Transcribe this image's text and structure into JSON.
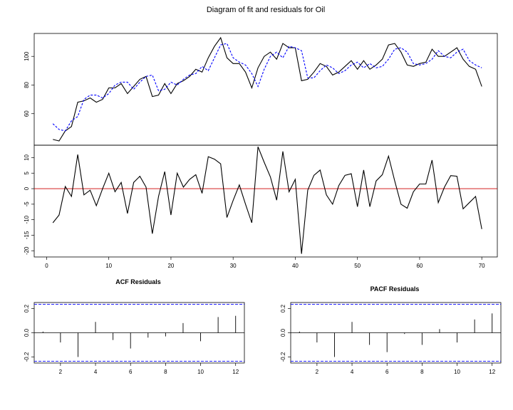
{
  "chart_data": [
    {
      "type": "line",
      "title": "Diagram of fit and residuals for Oil",
      "xlabel": "",
      "ylabel": "",
      "ylim": [
        38,
        116
      ],
      "yticks": [
        60,
        80,
        100
      ],
      "grid": false,
      "series": [
        {
          "color": "#000000",
          "style": "solid",
          "values": [
            42,
            41,
            48,
            51,
            68,
            69,
            71,
            68,
            70,
            78,
            78,
            81,
            74,
            79,
            84,
            86,
            72,
            73,
            81,
            74,
            81,
            83,
            86,
            91,
            89,
            99,
            107,
            113,
            99,
            95,
            95,
            89,
            78,
            92,
            100,
            103,
            98,
            109,
            106,
            106,
            83,
            84,
            89,
            95,
            93,
            87,
            89,
            93,
            97,
            91,
            97,
            91,
            94,
            98,
            108,
            109,
            103,
            94,
            93,
            95,
            96,
            105,
            100,
            100,
            103,
            106,
            98,
            93,
            91,
            79
          ],
          "x_start": 1
        },
        {
          "color": "#0000ff",
          "style": "dashed",
          "values": [
            53,
            49,
            48,
            55,
            58,
            70,
            73,
            73,
            71,
            74,
            80,
            82,
            82,
            77,
            82,
            86,
            87,
            76,
            77,
            82,
            80,
            84,
            87,
            88,
            93,
            90,
            99,
            108,
            109,
            99,
            96,
            94,
            88,
            79,
            91,
            100,
            103,
            99,
            107,
            106,
            104,
            85,
            85,
            90,
            94,
            92,
            88,
            90,
            94,
            96,
            92,
            95,
            92,
            93,
            98,
            105,
            106,
            103,
            95,
            94,
            95,
            98,
            104,
            100,
            99,
            103,
            105,
            97,
            94,
            92
          ],
          "x_start": 1
        }
      ]
    },
    {
      "type": "line",
      "xlabel": "",
      "ylabel": "",
      "ylim": [
        -22,
        14
      ],
      "yticks": [
        10,
        5,
        0,
        -5,
        -10,
        -15,
        -20
      ],
      "xlim": [
        -2,
        72.5
      ],
      "xticks": [
        0,
        10,
        20,
        30,
        40,
        50,
        60,
        70
      ],
      "reference_line": {
        "y": 0,
        "color": "#cc0000"
      },
      "series": [
        {
          "color": "#000000",
          "style": "solid",
          "values": [
            -11,
            -8.5,
            0.7,
            -2.5,
            11,
            -2,
            -0.5,
            -5.5,
            0,
            5,
            -1,
            2,
            -8,
            2,
            4,
            0.5,
            -14.5,
            -2.5,
            5.5,
            -8.5,
            5,
            0.5,
            3,
            4.5,
            -1.5,
            10.3,
            9.5,
            8,
            -9.3,
            -3.8,
            1.2,
            -5,
            -11,
            13.5,
            8.5,
            3.8,
            -3.7,
            12,
            -1,
            3,
            -21,
            -0.5,
            4.3,
            6,
            -2,
            -5,
            1,
            4.3,
            4.8,
            -5.8,
            6,
            -5.8,
            2.5,
            4.5,
            10.5,
            2.5,
            -5,
            -6.3,
            -1,
            1.5,
            1.5,
            9.2,
            -4.5,
            0.5,
            4.2,
            4,
            -6.5,
            -4.5,
            -2.5,
            -13
          ],
          "x_start": 1
        }
      ]
    },
    {
      "type": "bar",
      "title": "ACF Residuals",
      "ylim": [
        -0.25,
        0.25
      ],
      "yticks": [
        0.2,
        0.0,
        -0.2
      ],
      "xticks": [
        2,
        4,
        6,
        8,
        10,
        12
      ],
      "ci_bounds": [
        0.235,
        -0.235
      ],
      "categories": [
        1,
        2,
        3,
        4,
        5,
        6,
        7,
        8,
        9,
        10,
        11,
        12
      ],
      "values": [
        0.01,
        -0.08,
        -0.2,
        0.09,
        -0.06,
        -0.13,
        -0.04,
        -0.03,
        0.08,
        -0.07,
        0.13,
        0.14
      ]
    },
    {
      "type": "bar",
      "title": "PACF Residuals",
      "ylim": [
        -0.25,
        0.25
      ],
      "yticks": [
        0.2,
        0.0,
        -0.2
      ],
      "xticks": [
        2,
        4,
        6,
        8,
        10,
        12
      ],
      "ci_bounds": [
        0.235,
        -0.235
      ],
      "categories": [
        1,
        2,
        3,
        4,
        5,
        6,
        7,
        8,
        9,
        10,
        11,
        12
      ],
      "values": [
        0.01,
        -0.08,
        -0.2,
        0.09,
        -0.1,
        -0.16,
        -0.01,
        -0.1,
        0.03,
        -0.08,
        0.11,
        0.16
      ]
    }
  ]
}
